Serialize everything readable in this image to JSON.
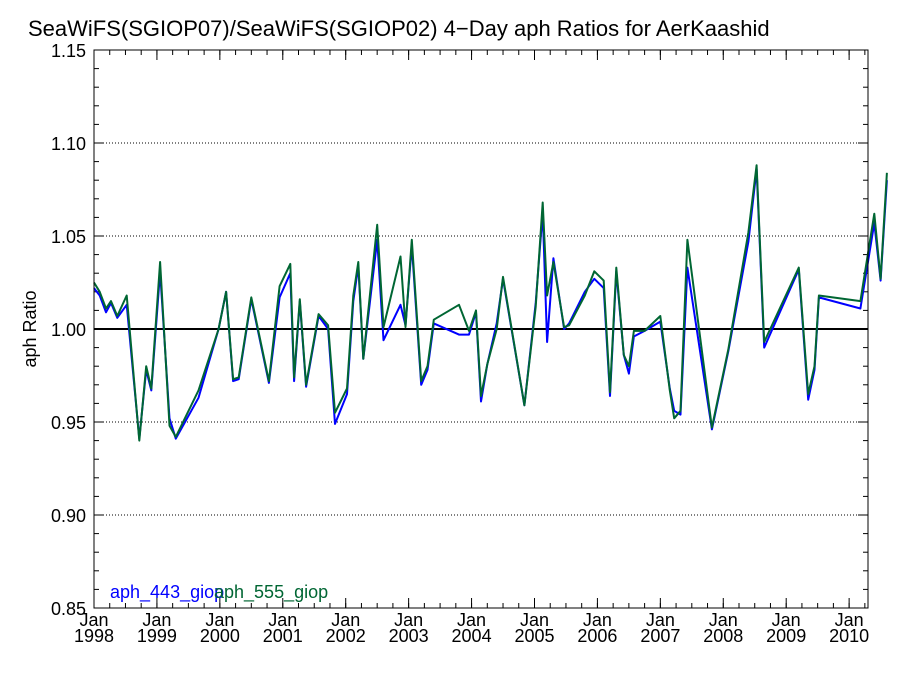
{
  "chart_data": {
    "type": "line",
    "title": "SeaWiFS(SGIOP07)/SeaWiFS(SGIOP02) 4−Day aph Ratios for AerKaashid",
    "xlabel": "",
    "ylabel": "aph Ratio",
    "ylim": [
      0.85,
      1.15
    ],
    "xlim": [
      1998.0,
      2010.3
    ],
    "y_ticks": [
      "0.85",
      "0.90",
      "0.95",
      "1.00",
      "1.05",
      "1.10",
      "1.15"
    ],
    "x_ticks": [
      {
        "top": "Jan",
        "bottom": "1998",
        "x": 1998
      },
      {
        "top": "Jan",
        "bottom": "1999",
        "x": 1999
      },
      {
        "top": "Jan",
        "bottom": "2000",
        "x": 2000
      },
      {
        "top": "Jan",
        "bottom": "2001",
        "x": 2001
      },
      {
        "top": "Jan",
        "bottom": "2002",
        "x": 2002
      },
      {
        "top": "Jan",
        "bottom": "2003",
        "x": 2003
      },
      {
        "top": "Jan",
        "bottom": "2004",
        "x": 2004
      },
      {
        "top": "Jan",
        "bottom": "2005",
        "x": 2005
      },
      {
        "top": "Jan",
        "bottom": "2006",
        "x": 2006
      },
      {
        "top": "Jan",
        "bottom": "2007",
        "x": 2007
      },
      {
        "top": "Jan",
        "bottom": "2008",
        "x": 2008
      },
      {
        "top": "Jan",
        "bottom": "2009",
        "x": 2009
      },
      {
        "top": "Jan",
        "bottom": "2010",
        "x": 2010
      }
    ],
    "grid": "horizontal dotted",
    "reference_line": 1.0,
    "legend_placement": "bottom-left",
    "series": [
      {
        "name": "aph_443_giop",
        "color": "#0000ff",
        "points": [
          [
            1998.0,
            1.022
          ],
          [
            1998.09,
            1.018
          ],
          [
            1998.19,
            1.009
          ],
          [
            1998.27,
            1.014
          ],
          [
            1998.37,
            1.006
          ],
          [
            1998.52,
            1.013
          ],
          [
            1998.72,
            0.941
          ],
          [
            1998.83,
            0.978
          ],
          [
            1998.91,
            0.967
          ],
          [
            1999.05,
            1.031
          ],
          [
            1999.2,
            0.952
          ],
          [
            1999.3,
            0.941
          ],
          [
            1999.66,
            0.963
          ],
          [
            1999.98,
            1.0
          ],
          [
            2000.1,
            1.02
          ],
          [
            2000.21,
            0.972
          ],
          [
            2000.3,
            0.973
          ],
          [
            2000.5,
            1.016
          ],
          [
            2000.78,
            0.971
          ],
          [
            2000.95,
            1.017
          ],
          [
            2001.12,
            1.03
          ],
          [
            2001.18,
            0.972
          ],
          [
            2001.27,
            1.015
          ],
          [
            2001.37,
            0.969
          ],
          [
            2001.57,
            1.007
          ],
          [
            2001.72,
            1.0
          ],
          [
            2001.83,
            0.949
          ],
          [
            2002.02,
            0.965
          ],
          [
            2002.12,
            1.015
          ],
          [
            2002.2,
            1.034
          ],
          [
            2002.28,
            0.984
          ],
          [
            2002.5,
            1.048
          ],
          [
            2002.6,
            0.994
          ],
          [
            2002.87,
            1.013
          ],
          [
            2002.95,
            1.002
          ],
          [
            2003.05,
            1.045
          ],
          [
            2003.2,
            0.97
          ],
          [
            2003.3,
            0.978
          ],
          [
            2003.4,
            1.003
          ],
          [
            2003.8,
            0.997
          ],
          [
            2003.96,
            0.997
          ],
          [
            2004.07,
            1.009
          ],
          [
            2004.15,
            0.961
          ],
          [
            2004.25,
            0.981
          ],
          [
            2004.4,
            1.003
          ],
          [
            2004.5,
            1.027
          ],
          [
            2004.84,
            0.959
          ],
          [
            2005.02,
            1.014
          ],
          [
            2005.13,
            1.063
          ],
          [
            2005.2,
            0.993
          ],
          [
            2005.3,
            1.038
          ],
          [
            2005.47,
            1.0
          ],
          [
            2005.55,
            1.003
          ],
          [
            2005.8,
            1.02
          ],
          [
            2005.95,
            1.027
          ],
          [
            2006.1,
            1.022
          ],
          [
            2006.2,
            0.964
          ],
          [
            2006.3,
            1.031
          ],
          [
            2006.42,
            0.986
          ],
          [
            2006.5,
            0.976
          ],
          [
            2006.58,
            0.996
          ],
          [
            2006.75,
            0.999
          ],
          [
            2007.0,
            1.004
          ],
          [
            2007.15,
            0.968
          ],
          [
            2007.22,
            0.956
          ],
          [
            2007.32,
            0.954
          ],
          [
            2007.43,
            1.033
          ],
          [
            2007.82,
            0.946
          ],
          [
            2008.08,
            0.988
          ],
          [
            2008.4,
            1.047
          ],
          [
            2008.53,
            1.086
          ],
          [
            2008.65,
            0.99
          ],
          [
            2009.2,
            1.032
          ],
          [
            2009.35,
            0.962
          ],
          [
            2009.45,
            0.978
          ],
          [
            2009.52,
            1.017
          ],
          [
            2010.18,
            1.011
          ],
          [
            2010.4,
            1.057
          ],
          [
            2010.5,
            1.026
          ],
          [
            2010.6,
            1.08
          ]
        ]
      },
      {
        "name": "aph_555_giop",
        "color": "#006633",
        "points": [
          [
            1998.0,
            1.025
          ],
          [
            1998.09,
            1.02
          ],
          [
            1998.19,
            1.011
          ],
          [
            1998.27,
            1.015
          ],
          [
            1998.37,
            1.007
          ],
          [
            1998.52,
            1.018
          ],
          [
            1998.72,
            0.94
          ],
          [
            1998.83,
            0.98
          ],
          [
            1998.91,
            0.968
          ],
          [
            1999.05,
            1.036
          ],
          [
            1999.2,
            0.948
          ],
          [
            1999.3,
            0.942
          ],
          [
            1999.66,
            0.967
          ],
          [
            1999.98,
            1.0
          ],
          [
            2000.1,
            1.02
          ],
          [
            2000.21,
            0.973
          ],
          [
            2000.3,
            0.974
          ],
          [
            2000.5,
            1.017
          ],
          [
            2000.78,
            0.972
          ],
          [
            2000.95,
            1.023
          ],
          [
            2001.12,
            1.035
          ],
          [
            2001.18,
            0.974
          ],
          [
            2001.27,
            1.016
          ],
          [
            2001.37,
            0.97
          ],
          [
            2001.57,
            1.008
          ],
          [
            2001.72,
            1.002
          ],
          [
            2001.83,
            0.955
          ],
          [
            2002.02,
            0.968
          ],
          [
            2002.12,
            1.018
          ],
          [
            2002.2,
            1.036
          ],
          [
            2002.28,
            0.984
          ],
          [
            2002.5,
            1.056
          ],
          [
            2002.6,
            1.001
          ],
          [
            2002.87,
            1.039
          ],
          [
            2002.95,
            1.001
          ],
          [
            2003.05,
            1.048
          ],
          [
            2003.2,
            0.972
          ],
          [
            2003.3,
            0.98
          ],
          [
            2003.4,
            1.005
          ],
          [
            2003.8,
            1.013
          ],
          [
            2003.96,
            0.999
          ],
          [
            2004.07,
            1.01
          ],
          [
            2004.15,
            0.964
          ],
          [
            2004.25,
            0.981
          ],
          [
            2004.4,
            1.0
          ],
          [
            2004.5,
            1.028
          ],
          [
            2004.84,
            0.959
          ],
          [
            2005.02,
            1.012
          ],
          [
            2005.13,
            1.068
          ],
          [
            2005.2,
            1.018
          ],
          [
            2005.3,
            1.036
          ],
          [
            2005.47,
            1.001
          ],
          [
            2005.55,
            1.002
          ],
          [
            2005.8,
            1.018
          ],
          [
            2005.95,
            1.031
          ],
          [
            2006.1,
            1.026
          ],
          [
            2006.2,
            0.966
          ],
          [
            2006.3,
            1.033
          ],
          [
            2006.42,
            0.986
          ],
          [
            2006.5,
            0.98
          ],
          [
            2006.58,
            0.999
          ],
          [
            2006.75,
            0.999
          ],
          [
            2007.0,
            1.007
          ],
          [
            2007.15,
            0.967
          ],
          [
            2007.22,
            0.952
          ],
          [
            2007.32,
            0.956
          ],
          [
            2007.43,
            1.048
          ],
          [
            2007.82,
            0.947
          ],
          [
            2008.08,
            0.989
          ],
          [
            2008.4,
            1.052
          ],
          [
            2008.53,
            1.088
          ],
          [
            2008.65,
            0.993
          ],
          [
            2009.2,
            1.033
          ],
          [
            2009.35,
            0.965
          ],
          [
            2009.45,
            0.98
          ],
          [
            2009.52,
            1.018
          ],
          [
            2010.18,
            1.015
          ],
          [
            2010.4,
            1.062
          ],
          [
            2010.5,
            1.027
          ],
          [
            2010.6,
            1.084
          ]
        ]
      }
    ]
  }
}
